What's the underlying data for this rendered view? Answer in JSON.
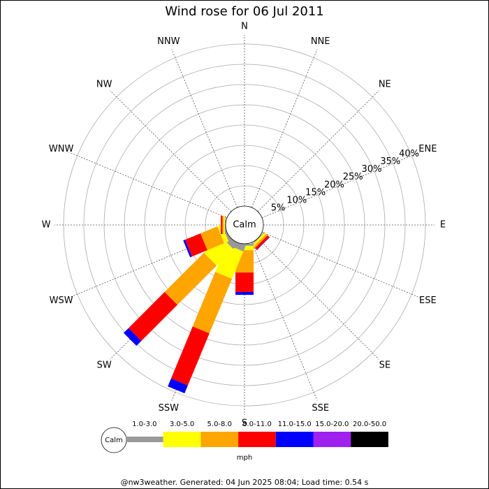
{
  "chart_data": {
    "type": "windrose",
    "title": "Wind rose for 06 Jul 2011",
    "directions": [
      "N",
      "NNE",
      "NE",
      "ENE",
      "E",
      "ESE",
      "SE",
      "SSE",
      "S",
      "SSW",
      "SW",
      "WSW",
      "W",
      "WNW",
      "NW",
      "NNW"
    ],
    "calm_label": "Calm",
    "units": "mph",
    "rlim": [
      0,
      40
    ],
    "rticks": [
      {
        "value": 5,
        "label": "5%"
      },
      {
        "value": 10,
        "label": "10%"
      },
      {
        "value": 15,
        "label": "15%"
      },
      {
        "value": 20,
        "label": "20%"
      },
      {
        "value": 25,
        "label": "25%"
      },
      {
        "value": 30,
        "label": "30%"
      },
      {
        "value": 35,
        "label": "35%"
      },
      {
        "value": 40,
        "label": "40%"
      }
    ],
    "series": [
      {
        "name": "1.0-3.0",
        "color": "#999999",
        "values": [
          0,
          0,
          0,
          0,
          0,
          0,
          0.2,
          0,
          0.5,
          1.5,
          1.5,
          0.5,
          0.2,
          0,
          0,
          0
        ]
      },
      {
        "name": "3.0-5.0",
        "color": "#ffff00",
        "values": [
          0,
          0,
          0,
          0,
          0,
          0,
          0.5,
          0,
          1.1,
          7.3,
          5.8,
          1.2,
          0.3,
          0,
          0,
          0
        ]
      },
      {
        "name": "5.0-8.0",
        "color": "#ffa500",
        "values": [
          0,
          0,
          0,
          0,
          0,
          0,
          0.5,
          0,
          5.5,
          14.6,
          13.7,
          4.5,
          0.3,
          0,
          0,
          0
        ]
      },
      {
        "name": "8.0-11.0",
        "color": "#ff0000",
        "values": [
          0,
          0,
          0,
          0,
          0,
          0,
          0.6,
          0,
          4.8,
          13.9,
          12.6,
          4.1,
          0.4,
          0,
          0,
          0
        ]
      },
      {
        "name": "11.0-15.0",
        "color": "#0000ff",
        "values": [
          0,
          0,
          0,
          0,
          0,
          0,
          0.1,
          0,
          0.7,
          2.1,
          1.7,
          0.5,
          0,
          0,
          0,
          0
        ]
      },
      {
        "name": "15.0-20.0",
        "color": "#a020f0",
        "values": [
          0,
          0,
          0,
          0,
          0,
          0,
          0,
          0,
          0,
          0,
          0,
          0,
          0,
          0,
          0,
          0
        ]
      },
      {
        "name": "20.0-50.0",
        "color": "#000000",
        "values": [
          0,
          0,
          0,
          0,
          0,
          0,
          0,
          0,
          0,
          0,
          0,
          0,
          0,
          0,
          0,
          0
        ]
      }
    ],
    "footer": "@nw3weather. Generated: 04 Jun 2025 08:04; Load time: 0.54 s"
  }
}
